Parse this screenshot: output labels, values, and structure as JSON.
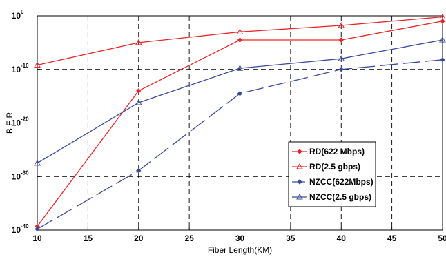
{
  "chart_data": {
    "type": "line",
    "xlabel": "Fiber Length(KM)",
    "ylabel": "B E R",
    "xlim": [
      10,
      50
    ],
    "ylim_exponent": [
      -40,
      0
    ],
    "y_scale": "log",
    "grid": true,
    "grid_style": "dashed",
    "legend_position": "lower-right",
    "x_ticks": [
      "10",
      "15",
      "20",
      "25",
      "30",
      "35",
      "40",
      "45",
      "50"
    ],
    "y_ticks": [
      {
        "base": "10",
        "exp": "0"
      },
      {
        "base": "10",
        "exp": "-10"
      },
      {
        "base": "10",
        "exp": "-20"
      },
      {
        "base": "10",
        "exp": "-30"
      },
      {
        "base": "10",
        "exp": "-40"
      }
    ],
    "series": [
      {
        "name": "RD(622 Mbps)",
        "color": "#e8262a",
        "marker": "diamond",
        "dash": "solid",
        "x": [
          10,
          20,
          30,
          40,
          50
        ],
        "y_exponent": [
          -39.3,
          -14.0,
          -4.5,
          -4.5,
          -1.0
        ]
      },
      {
        "name": "RD(2.5 gbps)",
        "color": "#e8262a",
        "marker": "triangle",
        "dash": "solid",
        "x": [
          10,
          20,
          30,
          40,
          50
        ],
        "y_exponent": [
          -9.2,
          -5.0,
          -3.0,
          -1.8,
          -0.2
        ]
      },
      {
        "name": "NZCC(622Mbps)",
        "color": "#3a4a9a",
        "marker": "diamond",
        "dash": "longdash",
        "x": [
          10,
          20,
          30,
          40,
          50
        ],
        "y_exponent": [
          -39.8,
          -28.9,
          -14.5,
          -10.0,
          -8.2
        ]
      },
      {
        "name": "NZCC(2.5 gbps)",
        "color": "#3a4a9a",
        "marker": "triangle",
        "dash": "solid",
        "x": [
          10,
          20,
          30,
          40,
          50
        ],
        "y_exponent": [
          -27.5,
          -16.2,
          -9.8,
          -8.0,
          -4.5
        ]
      }
    ]
  }
}
